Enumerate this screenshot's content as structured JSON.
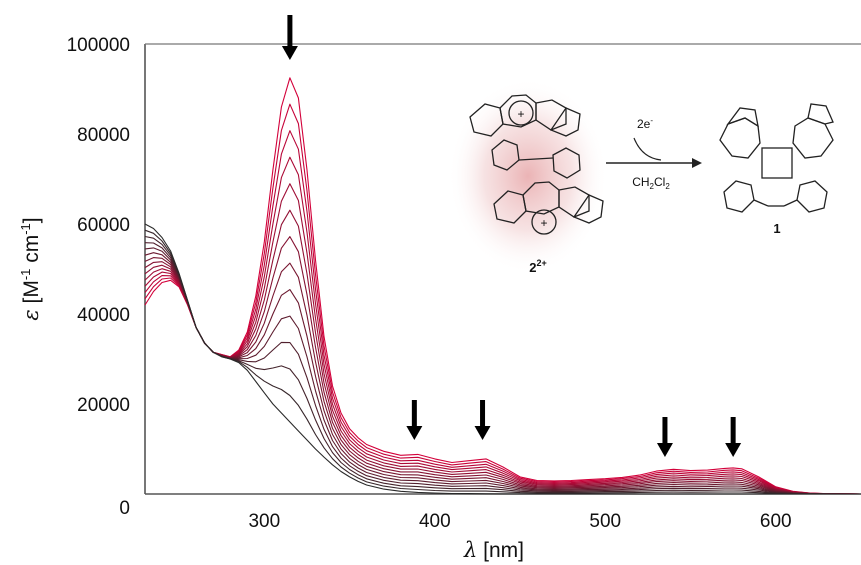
{
  "chart_data": {
    "type": "line",
    "xlabel": {
      "symbol": "λ",
      "unit": " [nm]"
    },
    "ylabel": {
      "symbol": "ε",
      "unit_main": " [M",
      "sup1": "-1",
      "unit_mid": " cm",
      "sup2": "-1",
      "unit_end": "]"
    },
    "xlim": [
      230,
      650
    ],
    "ylim": [
      0,
      100000
    ],
    "xticks": [
      "300",
      "400",
      "500",
      "600"
    ],
    "xtick_values": [
      300,
      400,
      500,
      600
    ],
    "yticks": [
      "0",
      "20000",
      "40000",
      "60000",
      "80000",
      "100000"
    ],
    "ytick_values": [
      0,
      20000,
      40000,
      60000,
      80000,
      100000
    ],
    "x": [
      230,
      235,
      240,
      245,
      250,
      255,
      260,
      265,
      270,
      275,
      280,
      285,
      290,
      295,
      300,
      305,
      310,
      315,
      320,
      325,
      330,
      335,
      340,
      345,
      350,
      355,
      360,
      370,
      380,
      390,
      400,
      410,
      420,
      430,
      440,
      450,
      460,
      470,
      480,
      490,
      500,
      510,
      520,
      530,
      540,
      550,
      560,
      570,
      575,
      580,
      590,
      600,
      610,
      620,
      630,
      650
    ],
    "final_spectrum": [
      60000,
      59000,
      57000,
      54000,
      49000,
      43000,
      37000,
      33500,
      31500,
      30500,
      30000,
      29200,
      27500,
      25000,
      22500,
      20000,
      18000,
      16000,
      14000,
      12000,
      10000,
      8200,
      6500,
      5000,
      3800,
      2800,
      2000,
      1100,
      600,
      350,
      200,
      120,
      80,
      50,
      30,
      20,
      15,
      10,
      8,
      5,
      5,
      5,
      5,
      5,
      5,
      5,
      5,
      5,
      5,
      5,
      5,
      5,
      5,
      5,
      5,
      5
    ],
    "initial_spectrum": [
      42000,
      45000,
      47000,
      47500,
      46000,
      42000,
      37000,
      33500,
      31500,
      31000,
      30500,
      32000,
      36000,
      44000,
      56000,
      72000,
      86000,
      92500,
      88000,
      72000,
      52000,
      35000,
      24000,
      18000,
      14500,
      12500,
      11000,
      9500,
      8600,
      8800,
      7800,
      7000,
      7400,
      7800,
      6000,
      3800,
      3000,
      2900,
      3000,
      3200,
      3400,
      3700,
      4200,
      5100,
      5500,
      5200,
      5300,
      5700,
      5800,
      5600,
      3800,
      1600,
      600,
      200,
      60,
      0
    ],
    "n_traces": 14,
    "arrows_at_nm": [
      315,
      388,
      428,
      535,
      575
    ],
    "inset_labels": {
      "reagent_top": "2e",
      "reagent_top_sup": "-",
      "solvent_main": "CH",
      "solvent_sub1": "2",
      "solvent_mid": "Cl",
      "solvent_sub2": "2",
      "reactant_num": "2",
      "reactant_charge": "2+",
      "product_num": "1",
      "cation_mark": "+"
    },
    "colors": {
      "start": "#d3003a",
      "end": "#2a2a2a",
      "axis": "#555555",
      "arrow": "#000000"
    }
  }
}
